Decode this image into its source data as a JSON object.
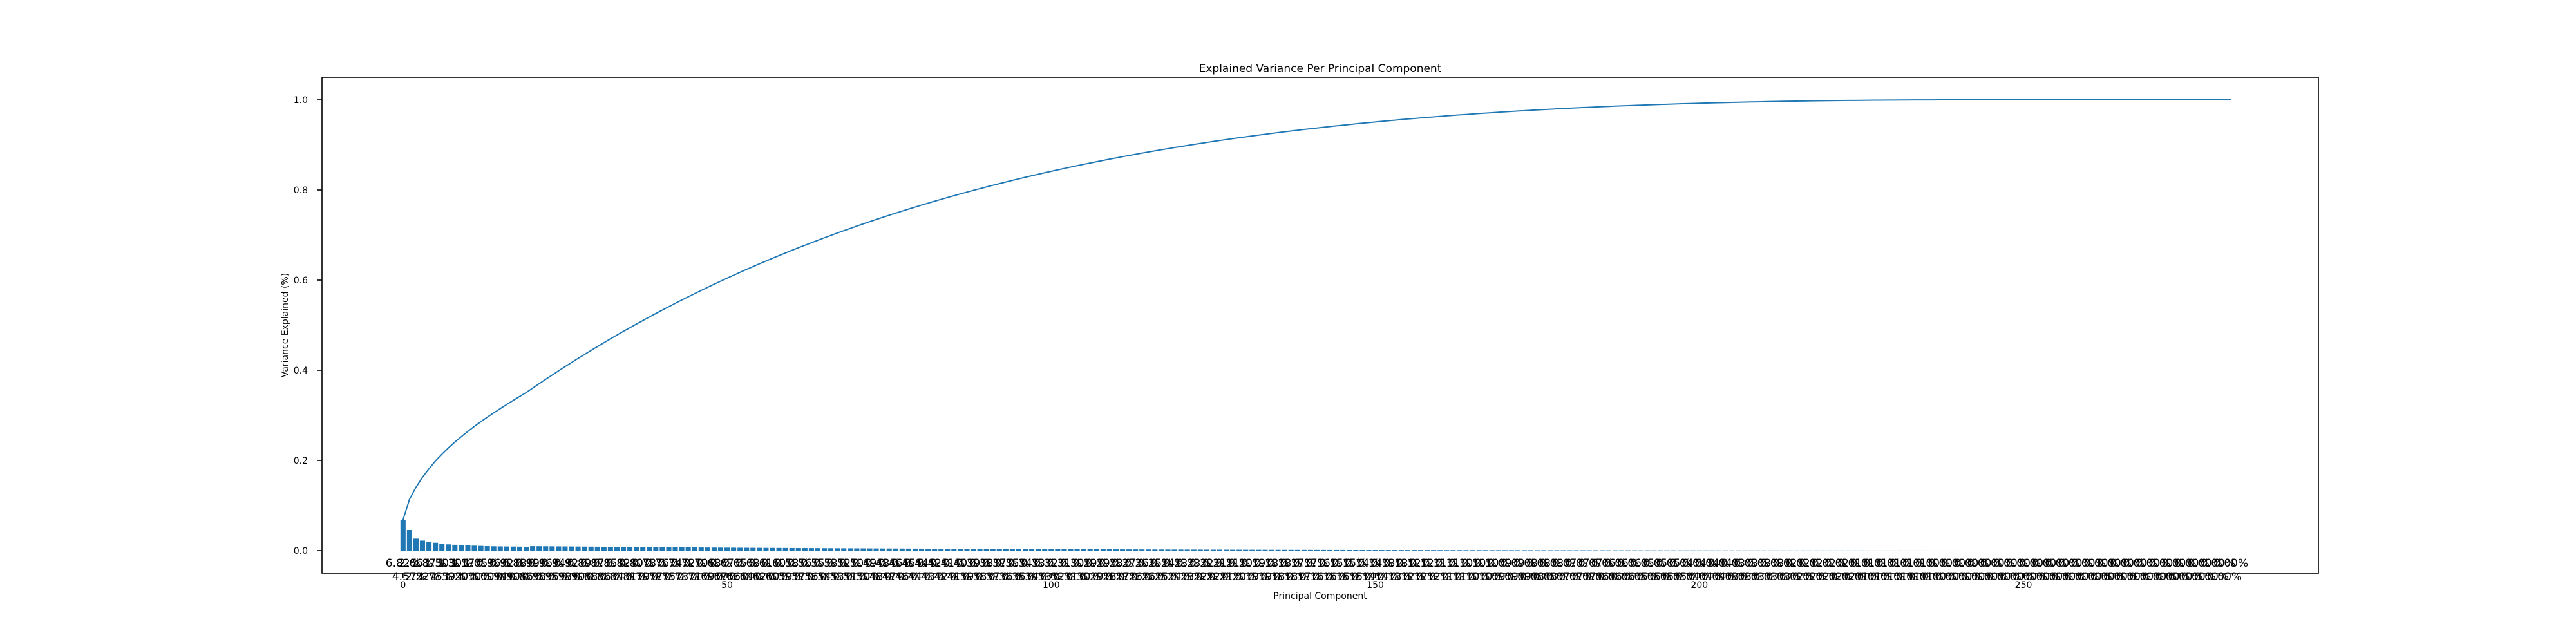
{
  "chart_data": {
    "type": "bar",
    "title": "Explained Variance Per Principal Component",
    "xlabel": "Principal Component",
    "ylabel": "Variance Explained (%)",
    "xlim": [
      -12.5,
      295.5
    ],
    "ylim": [
      -0.05,
      1.05
    ],
    "x_ticks": [
      0,
      50,
      100,
      150,
      200,
      250
    ],
    "y_ticks": [
      0.0,
      0.2,
      0.4,
      0.6,
      0.8,
      1.0
    ],
    "y_tick_labels": [
      "0.0",
      "0.2",
      "0.4",
      "0.6",
      "0.8",
      "1.0"
    ],
    "grid": false,
    "legend": "none",
    "n_components": 283,
    "series": [
      {
        "type": "bar",
        "color": "#1f77b4",
        "values_first": [
          0.0682,
          0.0457,
          0.0266,
          0.0222,
          0.0187,
          0.0175,
          0.015,
          0.0139,
          0.013,
          0.012,
          0.0117,
          0.011,
          0.0105,
          0.01,
          0.0096,
          0.0094,
          0.0092,
          0.009,
          0.0088,
          0.0086
        ],
        "bar_label_upper_first": [
          "6.82%",
          "",
          "2.66%",
          "",
          "1.87%",
          "",
          "1.50%",
          "",
          "1.30%",
          "",
          "1.17%",
          "",
          "1.05%",
          "",
          "0.96%",
          "",
          "0.92%",
          "",
          "0.88%",
          ""
        ],
        "bar_label_lower_first": [
          "",
          "4.57%",
          "",
          "2.22%",
          "",
          "1.75%",
          "",
          "1.39%",
          "",
          "1.20%",
          "",
          "1.10%",
          "",
          "1.00%",
          "",
          "0.94%",
          "",
          "0.90%",
          "",
          "0.86%"
        ]
      },
      {
        "type": "line",
        "name": "cumulative",
        "color": "#1f77b4"
      }
    ]
  }
}
